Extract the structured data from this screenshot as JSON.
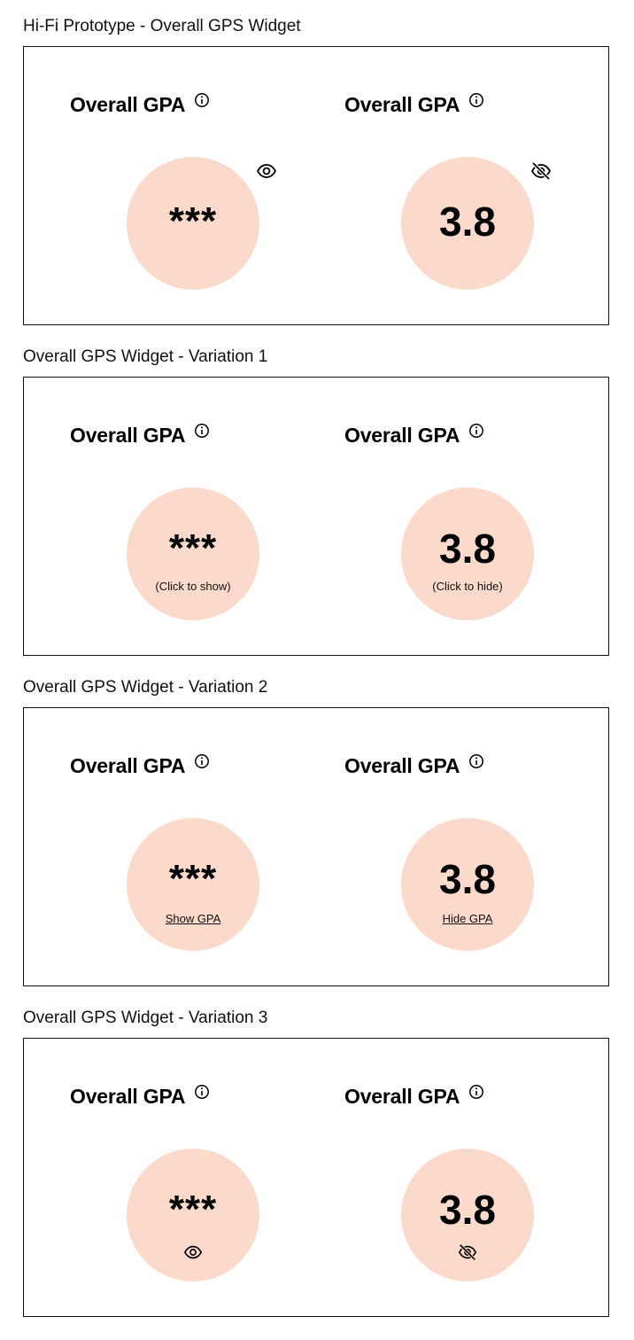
{
  "sections": [
    {
      "title": "Hi-Fi Prototype - Overall GPS Widget",
      "widgets": [
        {
          "heading": "Overall GPA",
          "value": "***"
        },
        {
          "heading": "Overall GPA",
          "value": "3.8"
        }
      ]
    },
    {
      "title": "Overall GPS Widget - Variation 1",
      "widgets": [
        {
          "heading": "Overall GPA",
          "value": "***",
          "caption": "(Click to show)"
        },
        {
          "heading": "Overall GPA",
          "value": "3.8",
          "caption": "(Click to hide)"
        }
      ]
    },
    {
      "title": "Overall GPS Widget - Variation 2",
      "widgets": [
        {
          "heading": "Overall GPA",
          "value": "***",
          "link": "Show GPA"
        },
        {
          "heading": "Overall GPA",
          "value": "3.8",
          "link": "Hide GPA"
        }
      ]
    },
    {
      "title": "Overall GPS Widget - Variation 3",
      "widgets": [
        {
          "heading": "Overall GPA",
          "value": "***"
        },
        {
          "heading": "Overall GPA",
          "value": "3.8"
        }
      ]
    }
  ],
  "icons": {
    "info": "info-icon",
    "show": "eye-icon",
    "hide": "eye-off-icon"
  },
  "colors": {
    "circle_fill": "#fcdacb",
    "border": "#111111",
    "text": "#000000"
  }
}
